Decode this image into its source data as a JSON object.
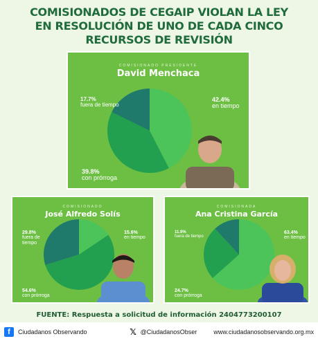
{
  "title": [
    "COMISIONADOS DE CEGAIP VIOLAN LA LEY",
    "EN RESOLUCIÓN DE UNO DE CADA CINCO",
    "RECURSOS DE REVISIÓN"
  ],
  "colors": {
    "bg": "#eef6e6",
    "panel": "#6dbf44",
    "en_tiempo": "#4cc45a",
    "con_prorroga": "#22a04f",
    "fuera_de_tiempo": "#1f7a6c"
  },
  "chart_data": [
    {
      "type": "pie",
      "role": "COMISIONADO PRESIDENTE",
      "name": "David Menchaca",
      "categories": [
        "en tiempo",
        "con prórroga",
        "fuera de tiempo"
      ],
      "values": [
        42.4,
        39.8,
        17.7
      ],
      "labels": {
        "en_tiempo": [
          "42.4%",
          "en tiempo"
        ],
        "con_prorroga": [
          "39.8%",
          "con prórroga"
        ],
        "fuera": [
          "17.7%",
          "fuera de tiempo"
        ]
      }
    },
    {
      "type": "pie",
      "role": "COMISIONADO",
      "name": "José Alfredo Solís",
      "categories": [
        "en tiempo",
        "con prórroga",
        "fuera de tiempo"
      ],
      "values": [
        15.6,
        54.6,
        29.8
      ],
      "labels": {
        "en_tiempo": [
          "15.6%",
          "en tiempo"
        ],
        "con_prorroga": [
          "54.6%",
          "con prórroga"
        ],
        "fuera": [
          "29.8%",
          "fuera de",
          "tiempo"
        ]
      }
    },
    {
      "type": "pie",
      "role": "COMISIONADA",
      "name": "Ana Cristina García",
      "categories": [
        "en tiempo",
        "con prórroga",
        "fuera de tiempo"
      ],
      "values": [
        63.4,
        24.7,
        11.9
      ],
      "labels": {
        "en_tiempo": [
          "63.4%",
          "en tiempo"
        ],
        "con_prorroga": [
          "24.7%",
          "con prórroga"
        ],
        "fuera": [
          "11.9%",
          "fuera de tiempo"
        ]
      }
    }
  ],
  "source": "FUENTE: Respuesta a solicitud de información 2404773200107",
  "footer": {
    "facebook": "Ciudadanos Observando",
    "x_handle": "@CiudadanosObser",
    "website": "www.ciudadanosobservando.org.mx",
    "fb_icon": "f",
    "x_icon": "𝕏"
  }
}
